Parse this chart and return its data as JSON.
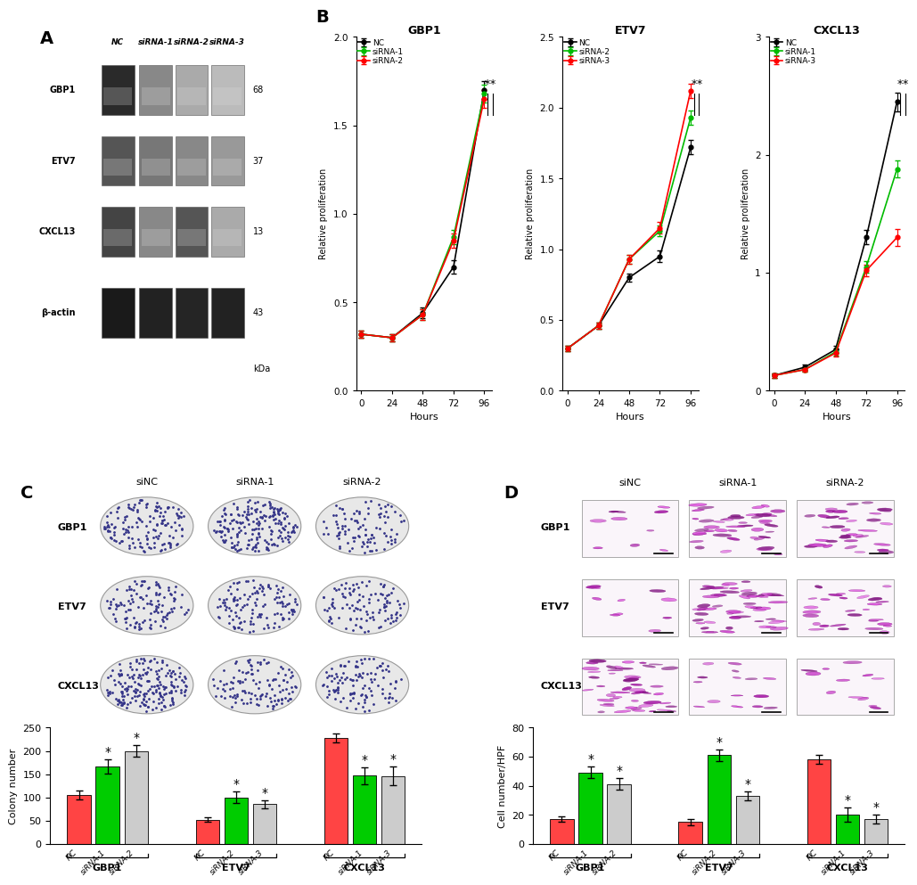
{
  "panel_A": {
    "label": "A",
    "western_labels": [
      "GBP1",
      "ETV7",
      "CXCL13",
      "β-actin"
    ],
    "kda_labels": [
      "68",
      "37",
      "13",
      "43"
    ],
    "col_headers": [
      "NC",
      "siRNA-1",
      "siRNA-2",
      "siRNA-3"
    ]
  },
  "panel_B": {
    "label": "B",
    "plots": [
      {
        "title": "GBP1",
        "xlabel": "Hours",
        "ylabel": "Relative proliferation",
        "ylim": [
          0.0,
          2.0
        ],
        "yticks": [
          0.0,
          0.5,
          1.0,
          1.5,
          2.0
        ],
        "xticks": [
          0,
          24,
          48,
          72,
          96
        ],
        "legend": [
          "NC",
          "siRNA-1",
          "siRNA-2"
        ],
        "colors": [
          "#000000",
          "#00bb00",
          "#ff0000"
        ],
        "NC": [
          0.32,
          0.3,
          0.44,
          0.7,
          1.7
        ],
        "siRNA1": [
          0.32,
          0.3,
          0.43,
          0.87,
          1.68
        ],
        "siRNA2": [
          0.32,
          0.3,
          0.43,
          0.85,
          1.65
        ],
        "NC_err": [
          0.02,
          0.02,
          0.03,
          0.04,
          0.05
        ],
        "siRNA1_err": [
          0.02,
          0.02,
          0.03,
          0.04,
          0.05
        ],
        "siRNA2_err": [
          0.02,
          0.02,
          0.03,
          0.04,
          0.05
        ]
      },
      {
        "title": "ETV7",
        "xlabel": "Hours",
        "ylabel": "Relative proliferation",
        "ylim": [
          0.0,
          2.5
        ],
        "yticks": [
          0.0,
          0.5,
          1.0,
          1.5,
          2.0,
          2.5
        ],
        "xticks": [
          0,
          24,
          48,
          72,
          96
        ],
        "legend": [
          "NC",
          "siRNA-2",
          "siRNA-3"
        ],
        "colors": [
          "#000000",
          "#00bb00",
          "#ff0000"
        ],
        "NC": [
          0.3,
          0.46,
          0.8,
          0.95,
          1.72
        ],
        "siRNA1": [
          0.3,
          0.46,
          0.93,
          1.13,
          1.93
        ],
        "siRNA2": [
          0.3,
          0.46,
          0.93,
          1.15,
          2.12
        ],
        "NC_err": [
          0.02,
          0.02,
          0.03,
          0.04,
          0.05
        ],
        "siRNA1_err": [
          0.02,
          0.02,
          0.03,
          0.04,
          0.05
        ],
        "siRNA2_err": [
          0.02,
          0.02,
          0.03,
          0.04,
          0.05
        ]
      },
      {
        "title": "CXCL13",
        "xlabel": "Hours",
        "ylabel": "Relative proliferation",
        "ylim": [
          0.0,
          3.0
        ],
        "yticks": [
          0.0,
          1.0,
          2.0,
          3.0
        ],
        "xticks": [
          0,
          24,
          48,
          72,
          96
        ],
        "legend": [
          "NC",
          "siRNA-1",
          "siRNA-3"
        ],
        "colors": [
          "#000000",
          "#00bb00",
          "#ff0000"
        ],
        "NC": [
          0.13,
          0.2,
          0.35,
          1.3,
          2.45
        ],
        "siRNA1": [
          0.13,
          0.18,
          0.33,
          1.05,
          1.88
        ],
        "siRNA2": [
          0.13,
          0.18,
          0.32,
          1.02,
          1.3
        ],
        "NC_err": [
          0.02,
          0.02,
          0.03,
          0.06,
          0.08
        ],
        "siRNA1_err": [
          0.02,
          0.02,
          0.03,
          0.05,
          0.07
        ],
        "siRNA2_err": [
          0.02,
          0.02,
          0.03,
          0.05,
          0.07
        ]
      }
    ]
  },
  "panel_C": {
    "label": "C",
    "ylabel": "Colony number",
    "ylim": [
      0,
      250
    ],
    "yticks": [
      0,
      50,
      100,
      150,
      200,
      250
    ],
    "image_rows": [
      {
        "gene": "GBP1",
        "col_labels": [
          "siNC",
          "siRNA-1",
          "siRNA-2"
        ],
        "n_dots": [
          150,
          200,
          100
        ]
      },
      {
        "gene": "ETV7",
        "col_labels": [
          "siNC",
          "siRNA-2",
          "siRNA-3"
        ],
        "n_dots": [
          120,
          130,
          110
        ]
      },
      {
        "gene": "CXCL13",
        "col_labels": [
          "siNC",
          "siRNA-1",
          "siRNA-3"
        ],
        "n_dots": [
          200,
          120,
          115
        ]
      }
    ],
    "groups": [
      {
        "gene": "GBP1",
        "labels": [
          "NC",
          "siRNA-1",
          "siRNA-2"
        ],
        "values": [
          105,
          167,
          200
        ],
        "errors": [
          10,
          15,
          12
        ],
        "colors": [
          "#ff4444",
          "#00cc00",
          "#cccccc"
        ],
        "sig": [
          false,
          true,
          true
        ]
      },
      {
        "gene": "ETV7",
        "labels": [
          "NC",
          "siRNA-2",
          "siRNA-3"
        ],
        "values": [
          52,
          100,
          85
        ],
        "errors": [
          5,
          12,
          8
        ],
        "colors": [
          "#ff4444",
          "#00cc00",
          "#cccccc"
        ],
        "sig": [
          false,
          true,
          true
        ]
      },
      {
        "gene": "CXCL13",
        "labels": [
          "NC",
          "siRNA-1",
          "siRNA-3"
        ],
        "values": [
          228,
          147,
          146
        ],
        "errors": [
          10,
          18,
          20
        ],
        "colors": [
          "#ff4444",
          "#00cc00",
          "#cccccc"
        ],
        "sig": [
          false,
          true,
          true
        ]
      }
    ]
  },
  "panel_D": {
    "label": "D",
    "ylabel": "Cell number/HPF",
    "ylim": [
      0,
      80
    ],
    "yticks": [
      0,
      20,
      40,
      60,
      80
    ],
    "image_rows": [
      {
        "gene": "GBP1",
        "col_labels": [
          "siNC",
          "siRNA-1",
          "siRNA-2"
        ],
        "n_cells": [
          10,
          45,
          35
        ]
      },
      {
        "gene": "ETV7",
        "col_labels": [
          "siNC",
          "siRNA-2",
          "siRNA-3"
        ],
        "n_cells": [
          10,
          55,
          30
        ]
      },
      {
        "gene": "CXCL13",
        "col_labels": [
          "siNC",
          "siRNA-1",
          "siRNA-3"
        ],
        "n_cells": [
          50,
          15,
          12
        ]
      }
    ],
    "groups": [
      {
        "gene": "GBP1",
        "labels": [
          "NC",
          "siRNA-1",
          "siRNA-2"
        ],
        "values": [
          17,
          49,
          41
        ],
        "errors": [
          2,
          4,
          4
        ],
        "colors": [
          "#ff4444",
          "#00cc00",
          "#cccccc"
        ],
        "sig": [
          false,
          true,
          true
        ]
      },
      {
        "gene": "ETV7",
        "labels": [
          "NC",
          "siRNA-2",
          "siRNA-3"
        ],
        "values": [
          15,
          61,
          33
        ],
        "errors": [
          2,
          4,
          3
        ],
        "colors": [
          "#ff4444",
          "#00cc00",
          "#cccccc"
        ],
        "sig": [
          false,
          true,
          true
        ]
      },
      {
        "gene": "CXCL13",
        "labels": [
          "NC",
          "siRNA-1",
          "siRNA-3"
        ],
        "values": [
          58,
          20,
          17
        ],
        "errors": [
          3,
          5,
          3
        ],
        "colors": [
          "#ff4444",
          "#00cc00",
          "#cccccc"
        ],
        "sig": [
          false,
          true,
          true
        ]
      }
    ]
  },
  "background_color": "#ffffff"
}
